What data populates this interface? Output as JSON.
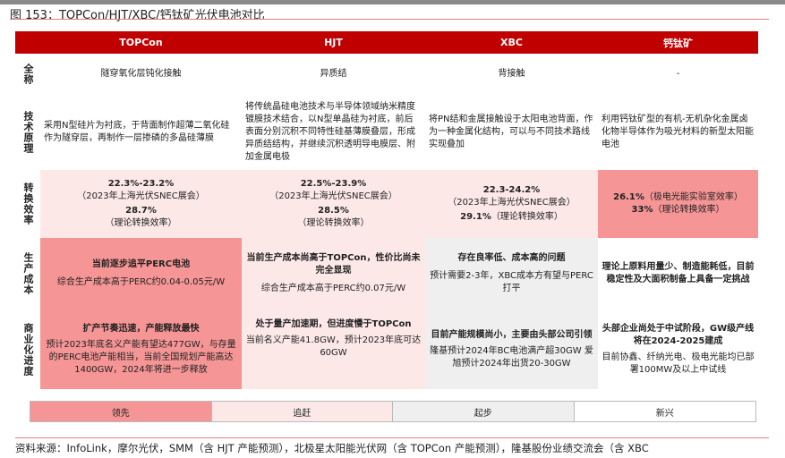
{
  "title": "图 153：TOPCon/HJT/XBC/钙钛矿光伏电池对比",
  "columns": [
    "",
    "TOPCon",
    "HJT",
    "XBC",
    "钙钛矿"
  ],
  "colors": {
    "header": "#c00000",
    "leading": "#f59595",
    "catching_up": "#fde8e8",
    "starting": "#efefef",
    "emerging": "#ffffff"
  },
  "rows": {
    "full_name": {
      "label": "全称",
      "cells": [
        "隧穿氧化层钝化接触",
        "异质结",
        "背接触",
        "-"
      ]
    },
    "principle": {
      "label": "技术原理",
      "cells": [
        "采用N型硅片为衬底，于背面制作超薄二氧化硅作为隧穿层，再制作一层掺磷的多晶硅薄膜",
        "将传统晶硅电池技术与半导体领域纳米精度镀膜技术结合，以N型单晶硅为衬底，前后表面分别沉积不同特性硅基薄膜叠层，形成异质结结构，并继续沉积透明导电膜层、附加金属电极",
        "将PN结和金属接触设于太阳电池背面，作为一种金属化结构，可以与不同技术路线实现叠加",
        "利用钙钛矿型的有机-无机杂化金属卤化物半导体作为吸光材料的新型太阳能电池"
      ]
    },
    "efficiency": {
      "label": "转换效率",
      "cells": [
        {
          "a": "22.3%-23.2%",
          "b": "（2023年上海光伏SNEC展会）",
          "c": "28.7%",
          "d": "（理论转换效率）"
        },
        {
          "a": "22.5%-23.9%",
          "b": "（2023年上海光伏SNEC展会）",
          "c": "28.5%",
          "d": "（理论转换效率）"
        },
        {
          "a": "22.3-24.2%",
          "b": "（2023年上海光伏SNEC展会）",
          "c": "29.1%",
          "d": "（理论转换效率）"
        },
        {
          "a": "26.1%",
          "b": "（极电光能实验室效率）",
          "c": "33%",
          "d": "（理论转换效率）"
        }
      ]
    },
    "cost": {
      "label": "生产成本",
      "cells": [
        {
          "h": "当前逐步追平PERC电池",
          "t": "综合生产成本高于PERC约0.04-0.05元/W"
        },
        {
          "h": "当前生产成本尚高于TOPCon，性价比尚未完全显现",
          "t": "综合生产成本高于PERC约0.07元/W"
        },
        {
          "h": "存在良率低、成本高的问题",
          "t": "预计需要2-3年，XBC成本方有望与PERC打平"
        },
        {
          "h": "理论上原料用量少、制造能耗低，目前稳定性及大面积制备上具备一定挑战",
          "t": ""
        }
      ]
    },
    "commercial": {
      "label": "商业化进度",
      "cells": [
        {
          "h": "扩产节奏迅速，产能释放最快",
          "t": "预计2023年底名义产能有望达477GW，与存量的PERC电池产能相当，当前全国规划产能高达1400GW，2024年将进一步释放"
        },
        {
          "h": "处于量产加速期，但进度慢于TOPCon",
          "t": "当前名义产能41.8GW，预计2023年底可达60GW"
        },
        {
          "h": "目前产能规模尚小，主要由头部公司引领",
          "t": "隆基预计2024年BC电池满产超30GW 爱旭预计2024年出货20-30GW"
        },
        {
          "h": "头部企业尚处于中试阶段，GW级产线将在2024-2025建成",
          "t": "目前协鑫、纤纳光电、极电光能均已部署100MW及以上中试线"
        }
      ]
    }
  },
  "legend": [
    "领先",
    "追赶",
    "起步",
    "新兴"
  ],
  "source": "资料来源：InfoLink，摩尔光伏，SMM（含 HJT 产能预测），北极星太阳能光伏网（含 TOPCon 产能预测），隆基股份业绩交流会（含 XBC"
}
